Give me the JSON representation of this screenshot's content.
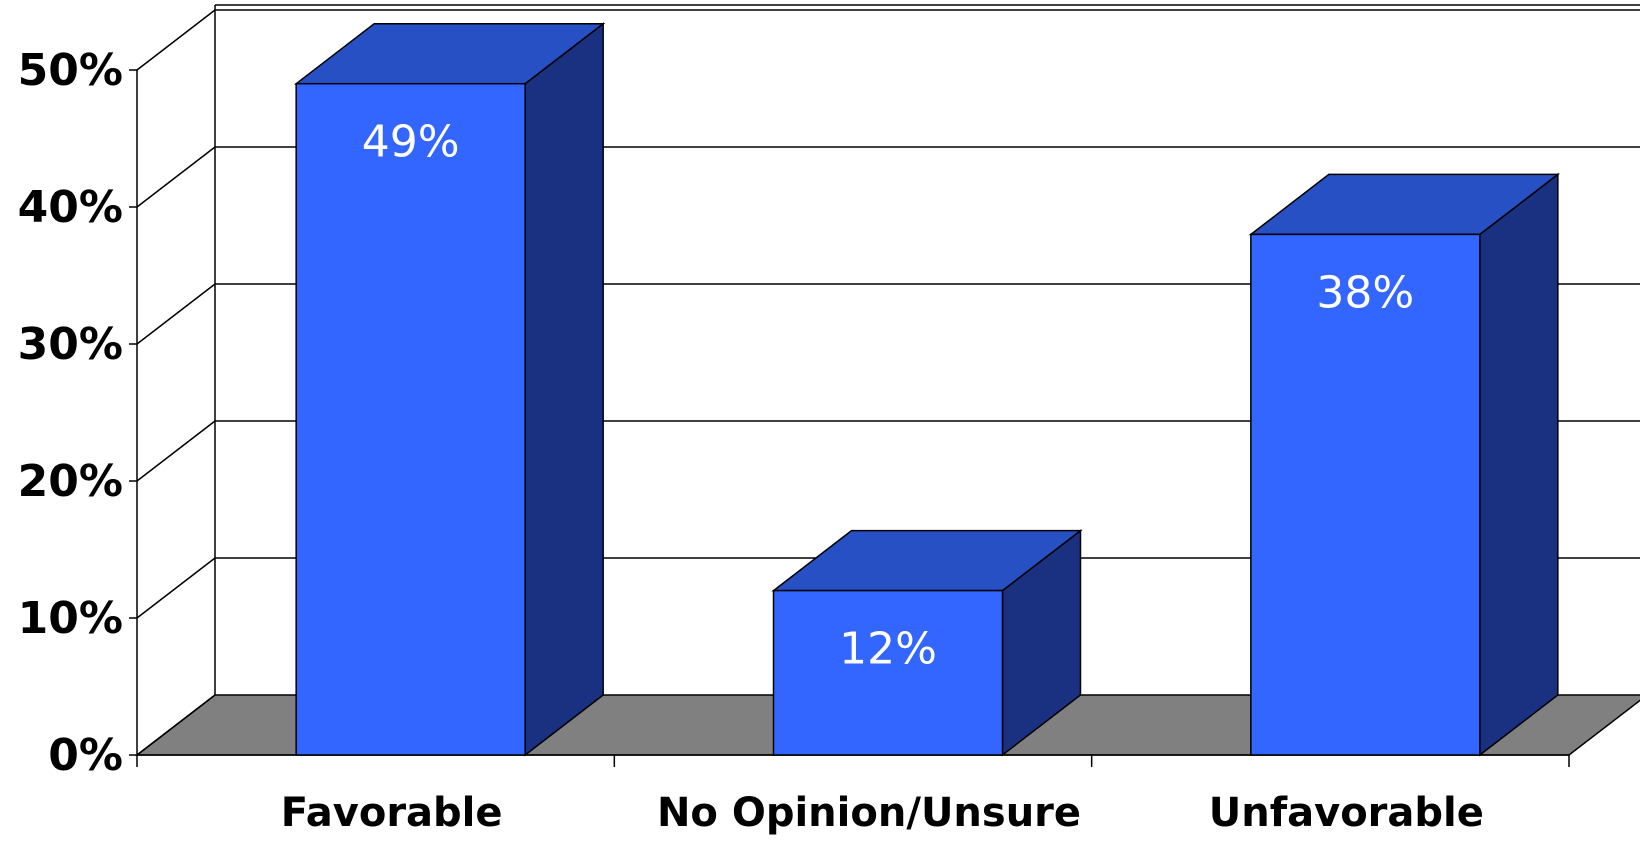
{
  "chart_data": {
    "type": "bar",
    "categories": [
      "Favorable",
      "No Opinion/Unsure",
      "Unfavorable"
    ],
    "values": [
      49,
      12,
      38
    ],
    "data_labels": [
      "49%",
      "12%",
      "38%"
    ],
    "title": "",
    "xlabel": "",
    "ylabel": "",
    "ylim": [
      0,
      50
    ],
    "yticks": [
      0,
      10,
      20,
      30,
      40,
      50
    ],
    "ytick_labels": [
      "0%",
      "10%",
      "20%",
      "30%",
      "40%",
      "50%"
    ],
    "grid": true,
    "style": "3d",
    "colors": {
      "bar_front": "#3366ff",
      "bar_top": "#2650c3",
      "bar_side": "#1a3080",
      "floor": "#808080",
      "gridline": "#000000"
    }
  }
}
